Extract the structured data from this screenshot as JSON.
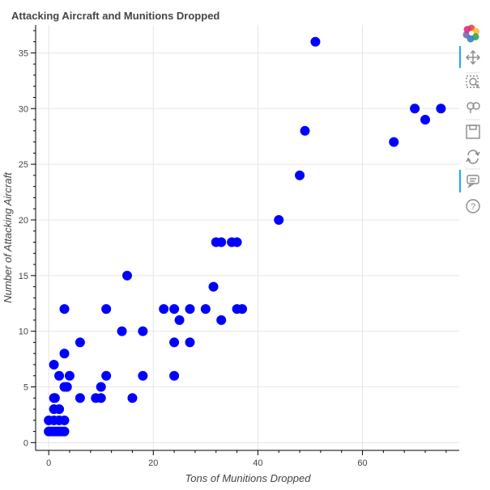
{
  "chart_data": {
    "type": "scatter",
    "title": "Attacking Aircraft and Munitions Dropped",
    "xlabel": "Tons of Munitions Dropped",
    "ylabel": "Number of Attacking Aircraft",
    "xlim": [
      -2.5,
      78.5
    ],
    "ylim": [
      -0.7,
      37.5
    ],
    "xticks": [
      0,
      20,
      40,
      60
    ],
    "yticks": [
      0,
      5,
      10,
      15,
      20,
      25,
      30,
      35
    ],
    "grid": true,
    "marker_color": "#0000ff",
    "points": [
      [
        0,
        1
      ],
      [
        0.5,
        1
      ],
      [
        1,
        1
      ],
      [
        1.5,
        1
      ],
      [
        2,
        1
      ],
      [
        2.5,
        1
      ],
      [
        3,
        1
      ],
      [
        0,
        2
      ],
      [
        1,
        2
      ],
      [
        2,
        2
      ],
      [
        3,
        2
      ],
      [
        1,
        3
      ],
      [
        2,
        3
      ],
      [
        1,
        4
      ],
      [
        1.2,
        4
      ],
      [
        1,
        7
      ],
      [
        2,
        6
      ],
      [
        3,
        5
      ],
      [
        3.5,
        5
      ],
      [
        3,
        8
      ],
      [
        3,
        12
      ],
      [
        4,
        6
      ],
      [
        6,
        9
      ],
      [
        6,
        4
      ],
      [
        9,
        4
      ],
      [
        10,
        4
      ],
      [
        10,
        5
      ],
      [
        11,
        6
      ],
      [
        11,
        12
      ],
      [
        14,
        10
      ],
      [
        15,
        15
      ],
      [
        16,
        4
      ],
      [
        18,
        10
      ],
      [
        18,
        6
      ],
      [
        22,
        12
      ],
      [
        24,
        12
      ],
      [
        24,
        9
      ],
      [
        24,
        6
      ],
      [
        25,
        11
      ],
      [
        27,
        12
      ],
      [
        27,
        9
      ],
      [
        30,
        12
      ],
      [
        31.5,
        14
      ],
      [
        32,
        18
      ],
      [
        33,
        18
      ],
      [
        33,
        11
      ],
      [
        35,
        18
      ],
      [
        36,
        18
      ],
      [
        36,
        12
      ],
      [
        37,
        12
      ],
      [
        44,
        20
      ],
      [
        48,
        24
      ],
      [
        49,
        28
      ],
      [
        51,
        36
      ],
      [
        66,
        27
      ],
      [
        70,
        30
      ],
      [
        72,
        29
      ],
      [
        75,
        30
      ]
    ]
  },
  "toolbar": {
    "tools": [
      "bokeh-logo-icon",
      "pan-icon",
      "box-zoom-icon",
      "wheel-zoom-icon",
      "save-icon",
      "reset-icon",
      "hover-icon",
      "help-icon"
    ]
  }
}
